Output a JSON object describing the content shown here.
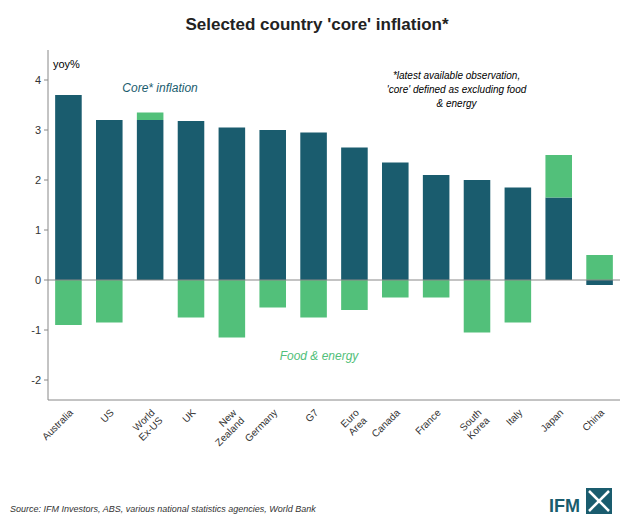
{
  "chart_data": {
    "type": "bar",
    "title": "Selected country 'core' inflation*",
    "y_label": "yoy%",
    "annotation": "*latest available observation,\n'core' defined as excluding food\n& energy",
    "source": "Source: IFM Investors, ABS, various national statistics agencies, World Bank",
    "logo_text": "IFM",
    "categories": [
      "Australia",
      "US",
      "World\nEx-US",
      "UK",
      "New\nZealand",
      "Germany",
      "G7",
      "Euro\nArea",
      "Canada",
      "France",
      "South\nKorea",
      "Italy",
      "Japan",
      "China"
    ],
    "series": [
      {
        "name": "Core* inflation",
        "color": "#1a5c6e",
        "values": [
          3.7,
          3.2,
          3.2,
          3.18,
          3.05,
          3.0,
          2.95,
          2.65,
          2.35,
          2.1,
          2.0,
          1.85,
          1.65,
          -0.1
        ]
      },
      {
        "name": "Food & energy",
        "color": "#52c07a",
        "values": [
          -0.9,
          -0.85,
          0.15,
          -0.75,
          -1.15,
          -0.55,
          -0.75,
          -0.6,
          -0.35,
          -0.35,
          -1.05,
          -0.85,
          0.85,
          0.5
        ]
      }
    ],
    "stacked": true,
    "ylim": [
      -2.4,
      4.6
    ],
    "yticks": [
      -2,
      -1,
      0,
      1,
      2,
      3,
      4
    ],
    "grid": false
  }
}
